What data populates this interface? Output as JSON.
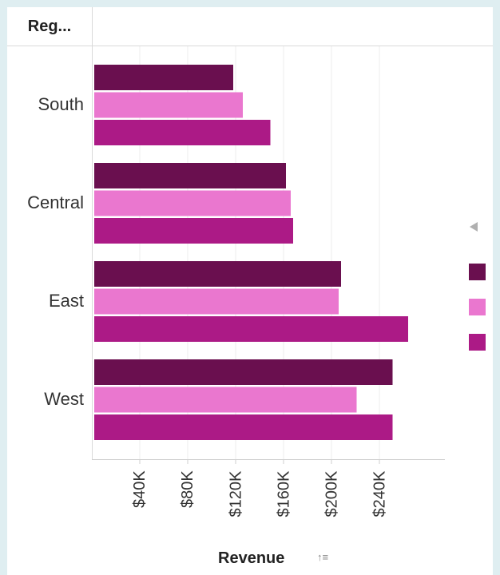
{
  "header": {
    "column_label": "Reg..."
  },
  "chart_data": {
    "type": "bar",
    "orientation": "horizontal",
    "categories": [
      "South",
      "Central",
      "East",
      "West"
    ],
    "series": [
      {
        "color": "#6a0f4f",
        "values": [
          118000,
          162000,
          208000,
          251000
        ]
      },
      {
        "color": "#ea77cf",
        "values": [
          126000,
          166000,
          206000,
          221000
        ]
      },
      {
        "color": "#ac1a86",
        "values": [
          149000,
          168000,
          264000,
          251000
        ]
      }
    ],
    "x_ticks": [
      40000,
      80000,
      120000,
      160000,
      200000,
      240000
    ],
    "x_tick_labels": [
      "$40K",
      "$80K",
      "$120K",
      "$160K",
      "$200K",
      "$240K"
    ],
    "xlabel": "Revenue",
    "ylabel": "",
    "xlim": [
      2000,
      294000
    ],
    "grid": true,
    "legend_position": "right"
  },
  "icons": {
    "sort": "sort-icon",
    "legend_scroll": "triangle-left-icon"
  }
}
